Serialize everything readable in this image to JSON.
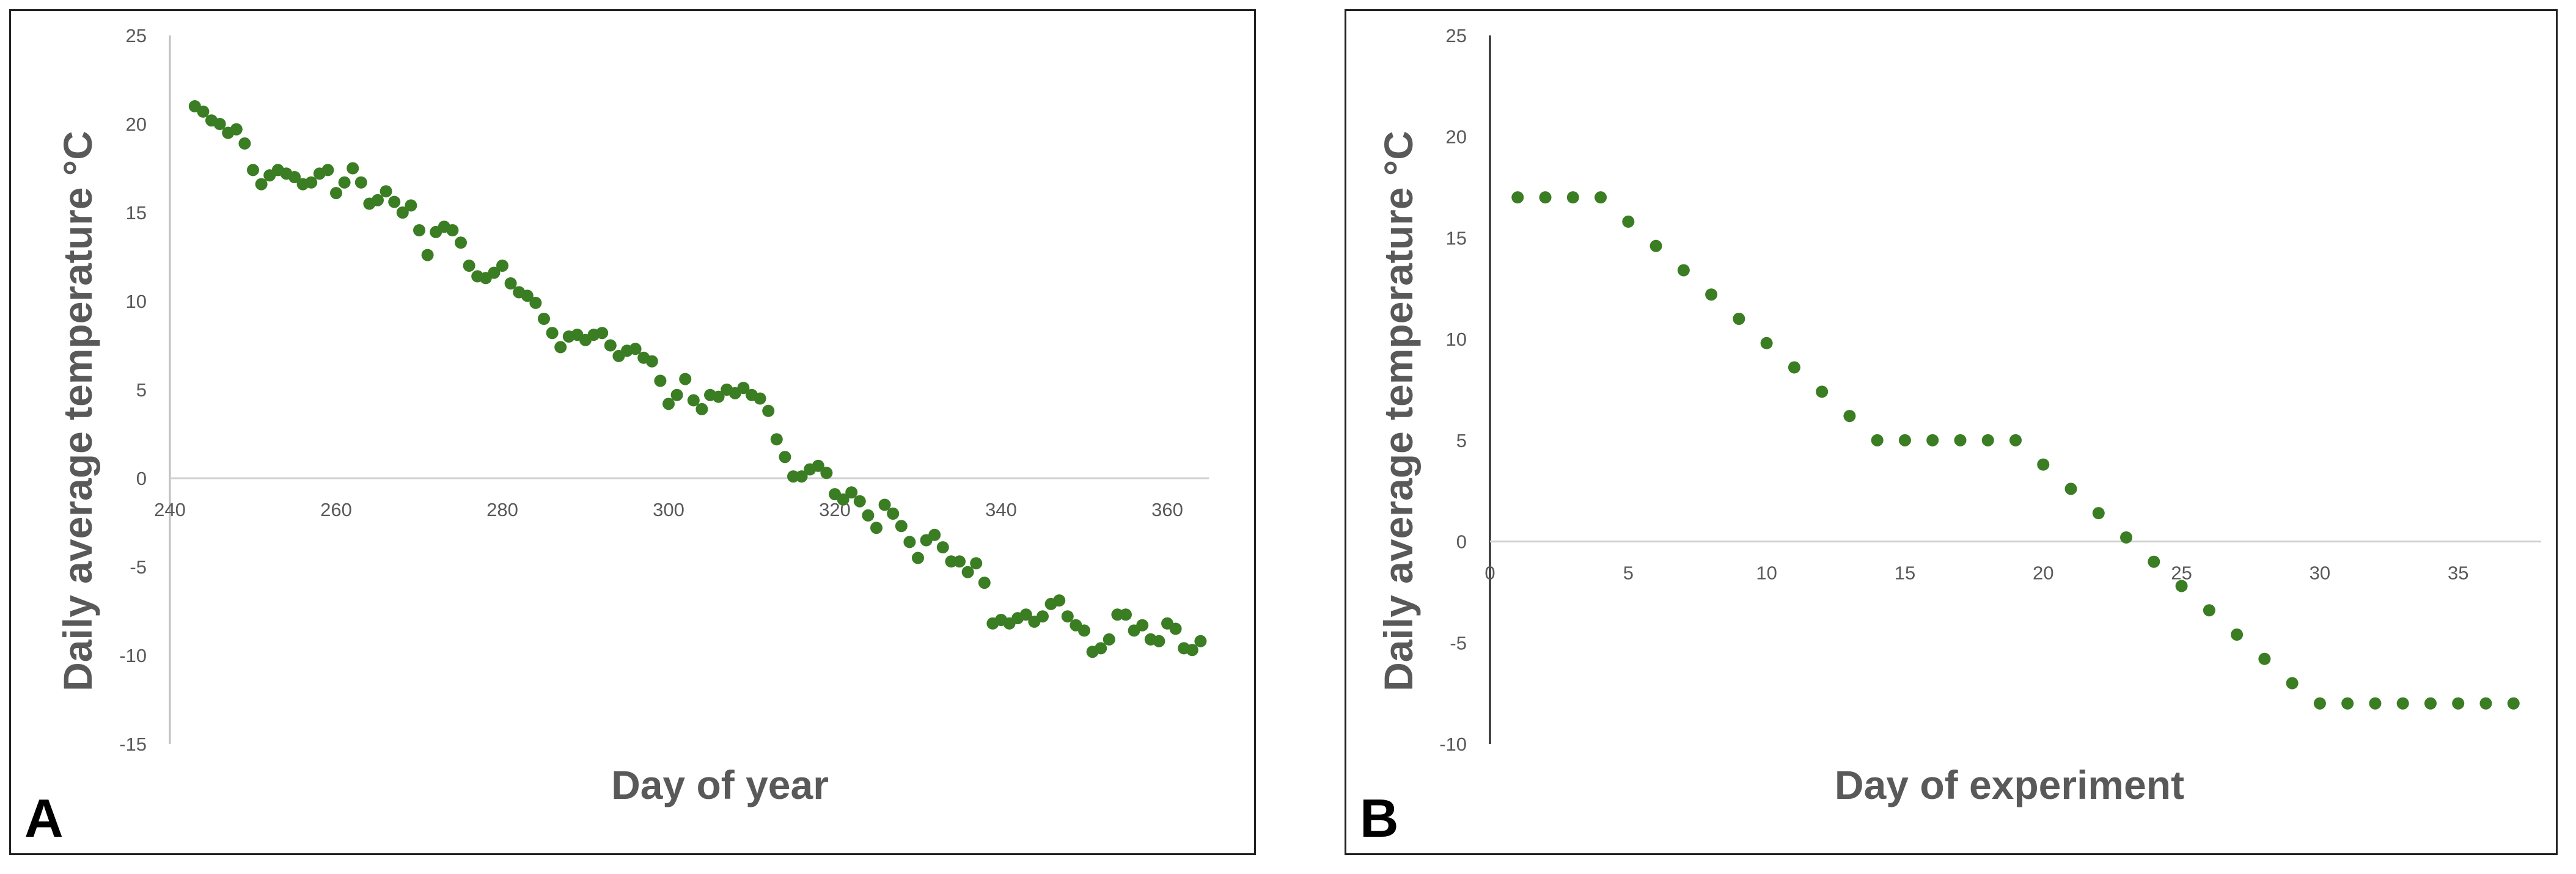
{
  "chart_data": [
    {
      "type": "scatter",
      "panel_label": "A",
      "xlabel": "Day of year",
      "ylabel": "Daily average temperature °C",
      "xlim": [
        240,
        365
      ],
      "ylim": [
        -15,
        25
      ],
      "xticks": [
        240,
        260,
        280,
        300,
        320,
        340,
        360
      ],
      "yticks": [
        25,
        20,
        15,
        10,
        5,
        0,
        -5,
        -10,
        -15
      ],
      "marker_color": "#3a7d23",
      "grid": false,
      "legend": "none",
      "x": [
        243,
        244,
        245,
        246,
        247,
        248,
        249,
        250,
        251,
        252,
        253,
        254,
        255,
        256,
        257,
        258,
        259,
        260,
        261,
        262,
        263,
        264,
        265,
        266,
        267,
        268,
        269,
        270,
        271,
        272,
        273,
        274,
        275,
        276,
        277,
        278,
        279,
        280,
        281,
        282,
        283,
        284,
        285,
        286,
        287,
        288,
        289,
        290,
        291,
        292,
        293,
        294,
        295,
        296,
        297,
        298,
        299,
        300,
        301,
        302,
        303,
        304,
        305,
        306,
        307,
        308,
        309,
        310,
        311,
        312,
        313,
        314,
        315,
        316,
        317,
        318,
        319,
        320,
        321,
        322,
        323,
        324,
        325,
        326,
        327,
        328,
        329,
        330,
        331,
        332,
        333,
        334,
        335,
        336,
        337,
        338,
        339,
        340,
        341,
        342,
        343,
        344,
        345,
        346,
        347,
        348,
        349,
        350,
        351,
        352,
        353,
        354,
        355,
        356,
        357,
        358,
        359,
        360,
        361,
        362,
        363,
        364
      ],
      "y": [
        21.0,
        20.7,
        20.2,
        20.0,
        19.5,
        19.7,
        18.9,
        17.4,
        16.6,
        17.1,
        17.4,
        17.2,
        17.0,
        16.6,
        16.7,
        17.2,
        17.4,
        16.1,
        16.7,
        17.5,
        16.7,
        15.5,
        15.7,
        16.2,
        15.6,
        15.0,
        15.4,
        14.0,
        12.6,
        13.9,
        14.2,
        14.0,
        13.3,
        12.0,
        11.4,
        11.3,
        11.6,
        12.0,
        11.0,
        10.5,
        10.3,
        9.9,
        9.0,
        8.2,
        7.4,
        8.0,
        8.1,
        7.8,
        8.1,
        8.2,
        7.5,
        6.9,
        7.2,
        7.3,
        6.8,
        6.6,
        5.5,
        4.2,
        4.7,
        5.6,
        4.4,
        3.9,
        4.7,
        4.6,
        5.0,
        4.8,
        5.1,
        4.7,
        4.5,
        3.8,
        2.2,
        1.2,
        0.1,
        0.1,
        0.5,
        0.7,
        0.3,
        -0.9,
        -1.2,
        -0.8,
        -1.3,
        -2.1,
        -2.8,
        -1.5,
        -2.0,
        -2.7,
        -3.6,
        -4.5,
        -3.5,
        -3.2,
        -3.9,
        -4.7,
        -4.7,
        -5.3,
        -4.8,
        -5.9,
        -8.2,
        -8.0,
        -8.2,
        -7.9,
        -7.7,
        -8.1,
        -7.8,
        -7.1,
        -6.9,
        -7.8,
        -8.3,
        -8.6,
        -9.8,
        -9.6,
        -9.1,
        -7.7,
        -7.7,
        -8.6,
        -8.3,
        -9.1,
        -9.2,
        -8.2,
        -8.5,
        -9.6,
        -9.7,
        -9.2
      ]
    },
    {
      "type": "scatter",
      "panel_label": "B",
      "xlabel": "Day of experiment",
      "ylabel": "Daily average temperature °C",
      "xlim": [
        0,
        38
      ],
      "ylim": [
        -10,
        25
      ],
      "xticks": [
        0,
        5,
        10,
        15,
        20,
        25,
        30,
        35
      ],
      "yticks": [
        25,
        20,
        15,
        10,
        5,
        0,
        -5,
        -10
      ],
      "marker_color": "#3a7d23",
      "grid": false,
      "legend": "none",
      "x": [
        1,
        2,
        3,
        4,
        5,
        6,
        7,
        8,
        9,
        10,
        11,
        12,
        13,
        14,
        15,
        16,
        17,
        18,
        19,
        20,
        21,
        22,
        23,
        24,
        25,
        26,
        27,
        28,
        29,
        30,
        31,
        32,
        33,
        34,
        35,
        36,
        37
      ],
      "y": [
        17,
        17,
        17,
        17,
        15.8,
        14.6,
        13.4,
        12.2,
        11.0,
        9.8,
        8.6,
        7.4,
        6.2,
        5,
        5,
        5,
        5,
        5,
        5,
        3.8,
        2.6,
        1.4,
        0.2,
        -1.0,
        -2.2,
        -3.4,
        -4.6,
        -5.8,
        -7.0,
        -8,
        -8,
        -8,
        -8,
        -8,
        -8,
        -8,
        -8
      ]
    }
  ]
}
